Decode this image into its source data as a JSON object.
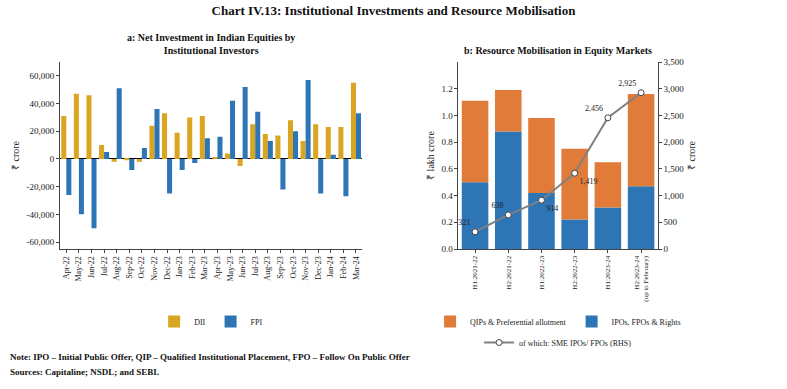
{
  "title": "Chart IV.13: Institutional Investments and Resource Mobilisation",
  "annotations": [
    "Note: IPO – Initial Public Offer, QIP – Qualified Institutional Placement, FPO – Follow On Public Offer",
    "Sources: Capitaline; NSDL; and SEBI."
  ],
  "chart_data": [
    {
      "type": "bar",
      "title": "a: Net Investment in Indian Equities by\nInstitutional Investors",
      "categories": [
        "Apr-22",
        "May-22",
        "Jun-22",
        "Jul-22",
        "Aug-22",
        "Sep-22",
        "Oct-22",
        "Nov-22",
        "Dec-22",
        "Jan-23",
        "Feb-23",
        "Mar-23",
        "Apr-23",
        "May-23",
        "Jun-23",
        "Jul-23",
        "Aug-23",
        "Sep-23",
        "Oct-23",
        "Nov-23",
        "Dec-23",
        "Jan-24",
        "Feb-24",
        "Mar-24"
      ],
      "series": [
        {
          "name": "DII",
          "color": "#DAA520",
          "values": [
            31000,
            47000,
            46000,
            10000,
            -2000,
            -1000,
            -2000,
            24000,
            33000,
            19000,
            30000,
            31000,
            1000,
            4000,
            -5000,
            25000,
            18000,
            17000,
            28000,
            13000,
            25000,
            23000,
            23000,
            55000
          ]
        },
        {
          "name": "FPI",
          "color": "#2E75B6",
          "values": [
            -26000,
            -40000,
            -50000,
            5000,
            51000,
            -8000,
            8000,
            36000,
            -25000,
            -8000,
            -3000,
            15000,
            16000,
            42000,
            52000,
            34000,
            13000,
            -22000,
            20000,
            57000,
            -25000,
            3000,
            -27000,
            33000
          ]
        }
      ],
      "ylabel": "₹ crore",
      "ylim": [
        -65000,
        70000
      ],
      "yticks": [
        {
          "value": -60000,
          "label": "-60,000"
        },
        {
          "value": -40000,
          "label": "-40,000"
        },
        {
          "value": -20000,
          "label": "-20,000"
        },
        0,
        {
          "value": 20000,
          "label": "20,000"
        },
        {
          "value": 40000,
          "label": "40,000"
        },
        {
          "value": 60000,
          "label": "60,000"
        }
      ],
      "grid": false,
      "legend": "bottom"
    },
    {
      "type": "bar",
      "title": "b: Resource Mobilisation in Equity Markets",
      "categories": [
        "H1:2021-22",
        "H2:2021-22",
        "H1:2022-23",
        "H2:2022-23",
        "H1:2023-24",
        "H2:2023-24\n(up to February)"
      ],
      "stacked": true,
      "series": [
        {
          "name": "IPOs, FPOs & Rights",
          "color": "#2E75B6",
          "values": [
            0.5,
            0.88,
            0.42,
            0.22,
            0.31,
            0.47
          ]
        },
        {
          "name": "QIPs & Preferential allotment",
          "color": "#E07B39",
          "values": [
            0.61,
            0.31,
            0.56,
            0.53,
            0.34,
            0.69
          ]
        },
        {
          "name": "of which: SME IPOs/ FPOs (RHS)",
          "type": "line",
          "axis": "y2",
          "color": "#808080",
          "marker": "circle",
          "data_labels": true,
          "values": [
            321,
            638,
            914,
            1419,
            2456,
            2925
          ],
          "value_labels": [
            "321",
            "638",
            "914",
            "1,419",
            "2,456",
            "2,925"
          ]
        }
      ],
      "ylabel": "₹ lakh crore",
      "y2label": "₹ crore",
      "ylim": [
        0,
        1.4
      ],
      "yticks": [
        {
          "value": 0.0,
          "label": "0.0"
        },
        0.2,
        0.4,
        0.6,
        0.8,
        {
          "value": 1.0,
          "label": "1.0"
        },
        1.2
      ],
      "y2lim": [
        0,
        3500
      ],
      "y2ticks": [
        0,
        500,
        {
          "value": 1000,
          "label": "1,000"
        },
        {
          "value": 1500,
          "label": "1,500"
        },
        {
          "value": 2000,
          "label": "2,000"
        },
        {
          "value": 2500,
          "label": "2,500"
        },
        {
          "value": 3000,
          "label": "3,000"
        },
        {
          "value": 3500,
          "label": "3,500"
        }
      ],
      "grid": false,
      "legend": "bottom"
    }
  ]
}
